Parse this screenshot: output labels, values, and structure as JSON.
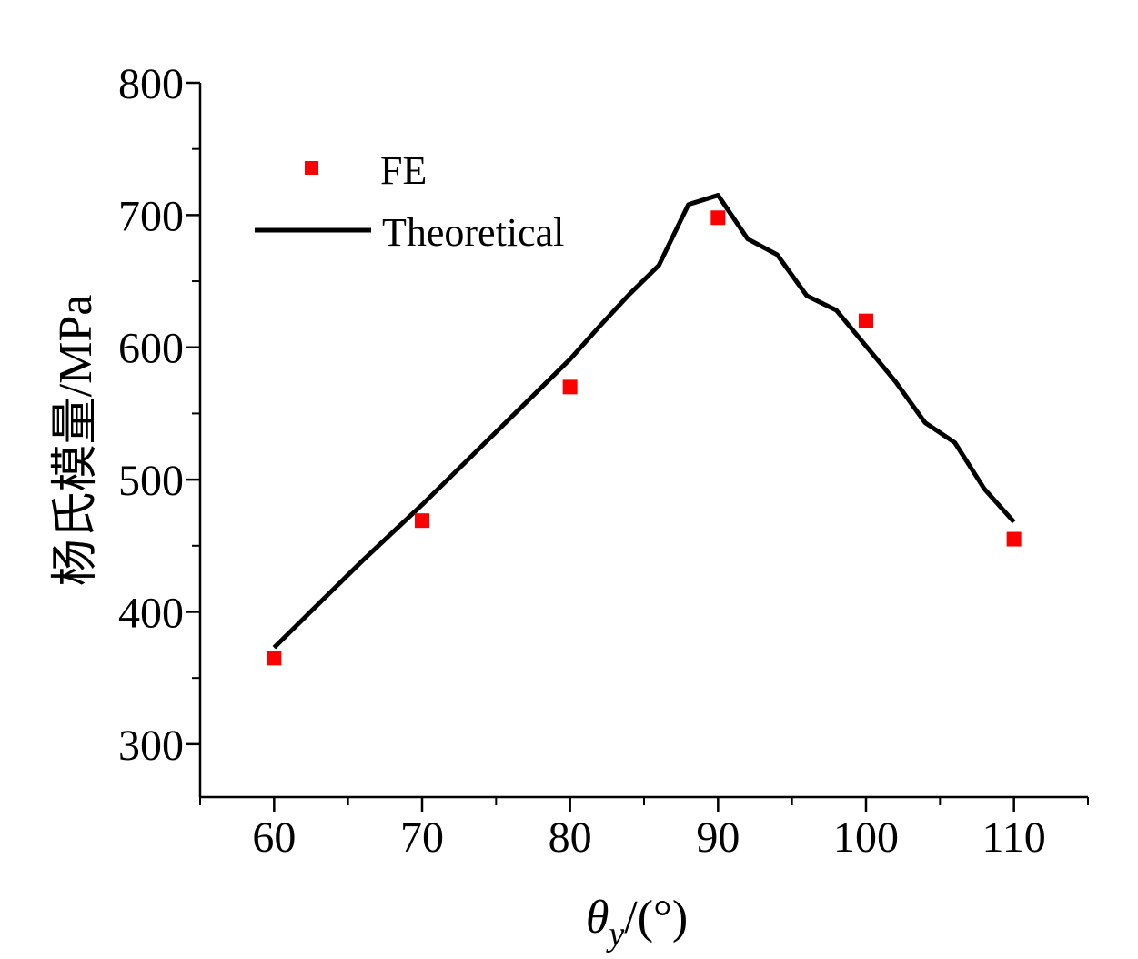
{
  "chart_data": {
    "type": "line",
    "title": "",
    "xlabel": {
      "symbol": "θ",
      "subscript": "y",
      "unit": "/(°)"
    },
    "ylabel": "杨氏模量/MPa",
    "xlim": [
      55,
      115
    ],
    "ylim": [
      260,
      800
    ],
    "xticks": [
      60,
      70,
      80,
      90,
      100,
      110
    ],
    "yticks": [
      300,
      400,
      500,
      600,
      700,
      800
    ],
    "grid": false,
    "legend_position": "top-left",
    "series": [
      {
        "name": "FE",
        "kind": "scatter",
        "marker": "square",
        "color": "#ff0000",
        "x": [
          60,
          70,
          80,
          90,
          100,
          110
        ],
        "y": [
          365,
          469,
          570,
          698,
          620,
          455
        ]
      },
      {
        "name": "Theoretical",
        "kind": "line",
        "color": "#000000",
        "x": [
          60,
          62,
          64,
          66,
          68,
          70,
          72,
          74,
          76,
          78,
          80,
          82,
          84,
          86,
          88,
          90,
          92,
          94,
          96,
          98,
          100,
          102,
          104,
          106,
          108,
          110
        ],
        "y": [
          373,
          395,
          417,
          439,
          460,
          481,
          503,
          525,
          547,
          569,
          591,
          616,
          640,
          662,
          708,
          715,
          682,
          670,
          639,
          628,
          601,
          574,
          543,
          528,
          493,
          468
        ]
      }
    ]
  }
}
